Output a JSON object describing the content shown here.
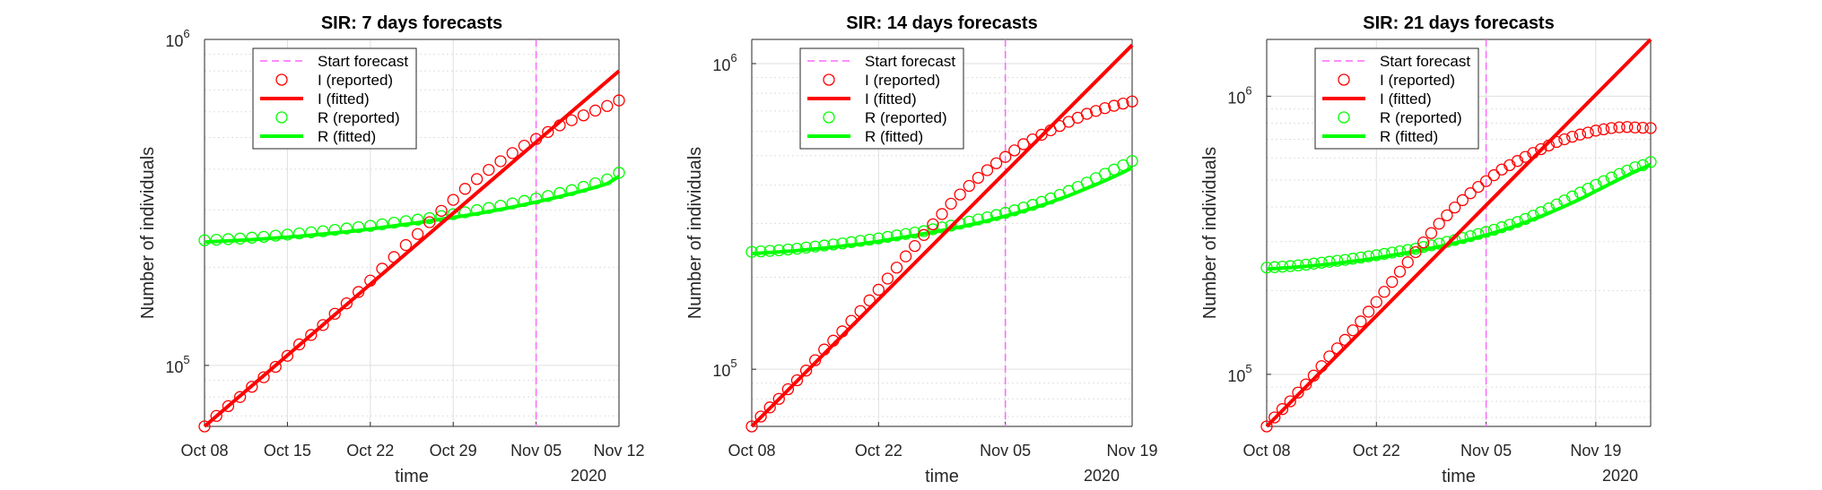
{
  "colors": {
    "I": "#ff0000",
    "R": "#00ff00",
    "forecast": "#ff66ff",
    "grid": "#dfdfdf",
    "axis": "#262626"
  },
  "chart_data": [
    {
      "type": "line",
      "title": "SIR: 7 days forecasts",
      "xlabel": "time",
      "ylabel": "Number of individuals",
      "year_label": "2020",
      "yscale": "log",
      "grid": true,
      "legend_position": "top-left",
      "x_start": "Oct 08",
      "x_end": "Nov 12",
      "xlim": [
        0,
        35
      ],
      "ylim": [
        65000,
        1000000
      ],
      "xticks": [
        {
          "x": 0,
          "label": "Oct 08"
        },
        {
          "x": 7,
          "label": "Oct 15"
        },
        {
          "x": 14,
          "label": "Oct 22"
        },
        {
          "x": 21,
          "label": "Oct 29"
        },
        {
          "x": 28,
          "label": "Nov 05"
        },
        {
          "x": 35,
          "label": "Nov 12"
        }
      ],
      "yticks": [
        {
          "y": 100000,
          "base": "10",
          "exp": "5"
        },
        {
          "y": 1000000,
          "base": "10",
          "exp": "6"
        }
      ],
      "forecast_start": 28,
      "series": [
        {
          "name": "Start forecast",
          "style": "dashed",
          "color": "#ff66ff"
        },
        {
          "name": "I (reported)",
          "style": "markers",
          "color": "#ff0000",
          "y": [
            65000,
            70000,
            75000,
            80000,
            86000,
            92000,
            99000,
            107000,
            116000,
            124000,
            133000,
            144000,
            155000,
            168000,
            182000,
            198000,
            215000,
            234000,
            253000,
            275000,
            298000,
            322000,
            348000,
            373000,
            398000,
            423000,
            448000,
            472000,
            495000,
            520000,
            545000,
            565000,
            585000,
            605000,
            625000,
            650000
          ]
        },
        {
          "name": "I (fitted)",
          "style": "line",
          "color": "#ff0000",
          "y_start": 65000,
          "y_end": 800000
        },
        {
          "name": "R (reported)",
          "style": "markers",
          "color": "#00ff00",
          "y": [
            242000,
            243000,
            244000,
            245000,
            246500,
            248000,
            250000,
            252000,
            254000,
            256000,
            258000,
            260500,
            263000,
            265500,
            268000,
            271000,
            274000,
            277000,
            280000,
            283000,
            287000,
            291000,
            295000,
            299500,
            304000,
            309000,
            314000,
            319500,
            325000,
            331000,
            338000,
            345000,
            353000,
            362000,
            372000,
            390000
          ]
        },
        {
          "name": "R (fitted)",
          "style": "line",
          "color": "#00ff00",
          "y": [
            239000,
            240000,
            241000,
            242000,
            243200,
            244500,
            246000,
            247500,
            249000,
            251000,
            253000,
            255000,
            257000,
            259500,
            262000,
            265000,
            268000,
            271000,
            274000,
            277500,
            281000,
            284500,
            288000,
            292000,
            296500,
            301000,
            306000,
            311500,
            317000,
            323000,
            329500,
            336500,
            344000,
            352000,
            361000,
            380000
          ]
        }
      ]
    },
    {
      "type": "line",
      "title": "SIR: 14 days forecasts",
      "xlabel": "time",
      "ylabel": "Number of individuals",
      "year_label": "2020",
      "yscale": "log",
      "grid": true,
      "legend_position": "top-left",
      "x_start": "Oct 08",
      "x_end": "Nov 19",
      "xlim": [
        0,
        42
      ],
      "ylim": [
        65000,
        1200000
      ],
      "xticks": [
        {
          "x": 0,
          "label": "Oct 08"
        },
        {
          "x": 14,
          "label": "Oct 22"
        },
        {
          "x": 28,
          "label": "Nov 05"
        },
        {
          "x": 42,
          "label": "Nov 19"
        }
      ],
      "yticks": [
        {
          "y": 100000,
          "base": "10",
          "exp": "5"
        },
        {
          "y": 1000000,
          "base": "10",
          "exp": "6"
        }
      ],
      "forecast_start": 28,
      "series": [
        {
          "name": "Start forecast",
          "style": "dashed",
          "color": "#ff66ff"
        },
        {
          "name": "I (reported)",
          "style": "markers",
          "color": "#ff0000",
          "y": [
            65000,
            70000,
            75000,
            80000,
            86000,
            92000,
            99000,
            107000,
            116000,
            124000,
            133000,
            144000,
            155000,
            168000,
            182000,
            198000,
            215000,
            234000,
            253000,
            275000,
            298000,
            322000,
            348000,
            373000,
            398000,
            423000,
            448000,
            472000,
            495000,
            520000,
            545000,
            565000,
            585000,
            605000,
            625000,
            645000,
            665000,
            685000,
            700000,
            715000,
            728000,
            740000,
            752000
          ]
        },
        {
          "name": "I (fitted)",
          "style": "line",
          "color": "#ff0000",
          "y_start": 65000,
          "y_end": 1150000
        },
        {
          "name": "R (reported)",
          "style": "markers",
          "color": "#00ff00",
          "y": [
            242000,
            243000,
            244000,
            245000,
            246500,
            248000,
            250000,
            252000,
            254000,
            256000,
            258000,
            260500,
            263000,
            265500,
            268000,
            271000,
            274000,
            277000,
            280000,
            283000,
            287000,
            291000,
            295000,
            299500,
            304000,
            309000,
            314000,
            319500,
            325000,
            331000,
            338000,
            345000,
            353000,
            362000,
            372000,
            383000,
            395000,
            408000,
            422000,
            436000,
            450000,
            465000,
            480000
          ]
        },
        {
          "name": "R (fitted)",
          "style": "line",
          "color": "#00ff00",
          "y": [
            239000,
            240000,
            241000,
            242000,
            243200,
            244500,
            246000,
            247500,
            249000,
            251000,
            253000,
            255000,
            257000,
            259500,
            262000,
            265000,
            268000,
            271000,
            274000,
            277500,
            281000,
            284500,
            288000,
            292000,
            296500,
            301000,
            306000,
            311500,
            317000,
            323000,
            329500,
            336500,
            344000,
            352000,
            361000,
            370000,
            380000,
            391000,
            402000,
            414000,
            427000,
            441000,
            456000
          ]
        }
      ]
    },
    {
      "type": "line",
      "title": "SIR: 21 days forecasts",
      "xlabel": "time",
      "ylabel": "Number of individuals",
      "year_label": "2020",
      "yscale": "log",
      "grid": true,
      "legend_position": "top-left",
      "x_start": "Oct 08",
      "x_end": "Nov 26",
      "xlim": [
        0,
        49
      ],
      "ylim": [
        65000,
        1600000
      ],
      "xticks": [
        {
          "x": 0,
          "label": "Oct 08"
        },
        {
          "x": 14,
          "label": "Oct 22"
        },
        {
          "x": 28,
          "label": "Nov 05"
        },
        {
          "x": 42,
          "label": "Nov 19"
        }
      ],
      "yticks": [
        {
          "y": 100000,
          "base": "10",
          "exp": "5"
        },
        {
          "y": 1000000,
          "base": "10",
          "exp": "6"
        }
      ],
      "forecast_start": 28,
      "series": [
        {
          "name": "Start forecast",
          "style": "dashed",
          "color": "#ff66ff"
        },
        {
          "name": "I (reported)",
          "style": "markers",
          "color": "#ff0000",
          "y": [
            65000,
            70000,
            75000,
            80000,
            86000,
            92000,
            99000,
            107000,
            116000,
            124000,
            133000,
            144000,
            155000,
            168000,
            182000,
            198000,
            215000,
            234000,
            253000,
            275000,
            298000,
            322000,
            348000,
            373000,
            398000,
            423000,
            448000,
            472000,
            495000,
            520000,
            545000,
            565000,
            585000,
            605000,
            625000,
            645000,
            665000,
            685000,
            700000,
            715000,
            728000,
            740000,
            752000,
            760000,
            768000,
            773000,
            775000,
            772000,
            770000,
            768000
          ]
        },
        {
          "name": "I (fitted)",
          "style": "line",
          "color": "#ff0000",
          "y_start": 65000,
          "y_end": 1600000
        },
        {
          "name": "R (reported)",
          "style": "markers",
          "color": "#00ff00",
          "y": [
            242000,
            243000,
            244000,
            245000,
            246500,
            248000,
            250000,
            252000,
            254000,
            256000,
            258000,
            260500,
            263000,
            265500,
            268000,
            271000,
            274000,
            277000,
            280000,
            283000,
            287000,
            291000,
            295000,
            299500,
            304000,
            309000,
            314000,
            319500,
            325000,
            331000,
            338000,
            345000,
            353000,
            362000,
            372000,
            383000,
            395000,
            408000,
            422000,
            436000,
            450000,
            465000,
            480000,
            495000,
            510000,
            525000,
            540000,
            555000,
            565000,
            580000
          ]
        },
        {
          "name": "R (fitted)",
          "style": "line",
          "color": "#00ff00",
          "y": [
            239000,
            240000,
            241000,
            242000,
            243200,
            244500,
            246000,
            247500,
            249000,
            251000,
            253000,
            255000,
            257000,
            259500,
            262000,
            265000,
            268000,
            271000,
            274000,
            277500,
            281000,
            284500,
            288000,
            292000,
            296500,
            301000,
            306000,
            311500,
            317000,
            323000,
            329500,
            336500,
            344000,
            352000,
            361000,
            370000,
            380000,
            391000,
            402000,
            414000,
            427000,
            441000,
            456000,
            471000,
            487000,
            503000,
            519000,
            536000,
            552000,
            568000
          ]
        }
      ]
    }
  ]
}
